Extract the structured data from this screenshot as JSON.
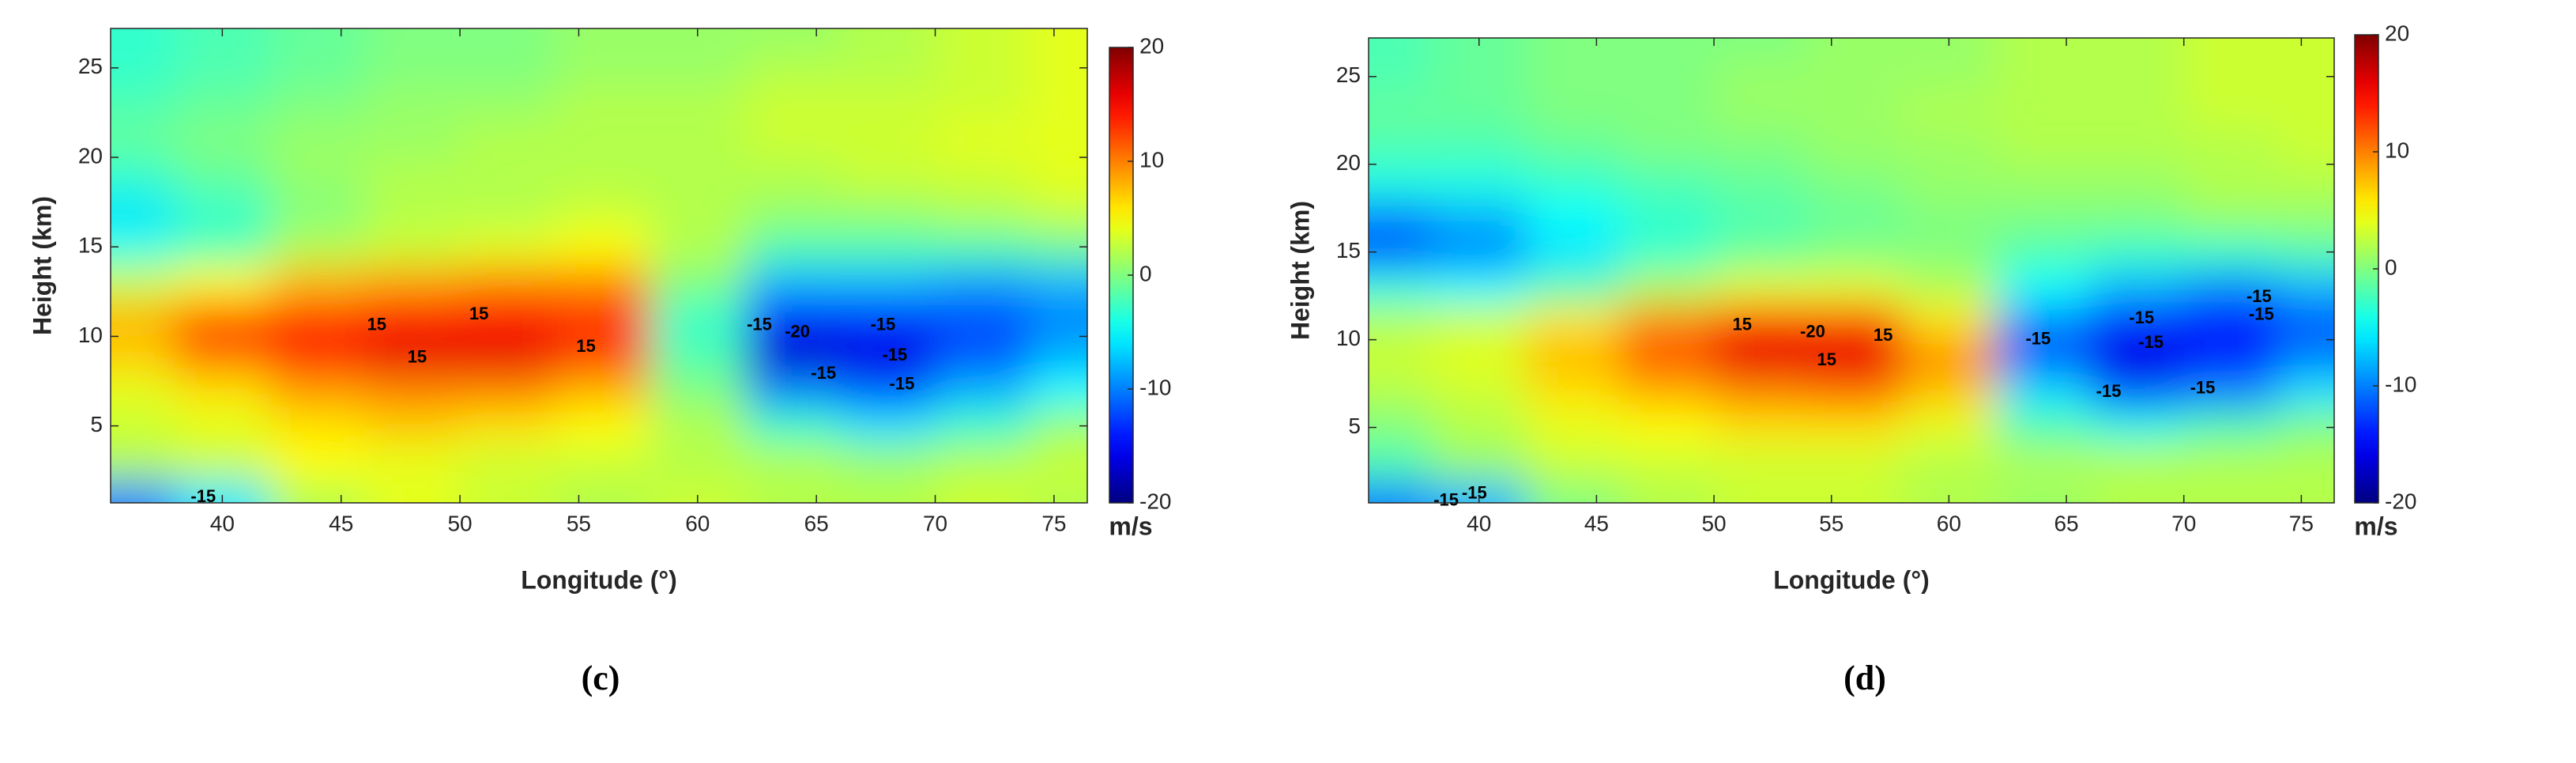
{
  "chart_data": [
    {
      "type": "heatmap",
      "panel_label": "(c)",
      "xlabel": "Longitude (°)",
      "ylabel": "Height (km)",
      "colormap": "jet",
      "x": [
        36,
        40,
        44,
        48,
        52,
        56,
        60,
        64,
        68,
        72,
        76
      ],
      "y": [
        1,
        3,
        5,
        7,
        9,
        11,
        13,
        15,
        17,
        19,
        21,
        23,
        25,
        27
      ],
      "z": [
        [
          -10,
          -6,
          2,
          4,
          3,
          2,
          3,
          2,
          2,
          3,
          2
        ],
        [
          2,
          3,
          5,
          4,
          3,
          3,
          2,
          2,
          1,
          2,
          3
        ],
        [
          3,
          4,
          6,
          7,
          6,
          5,
          2,
          -3,
          -6,
          -3,
          1
        ],
        [
          4,
          6,
          9,
          10,
          10,
          8,
          0,
          -10,
          -12,
          -8,
          -5
        ],
        [
          7,
          11,
          14,
          16,
          16,
          13,
          -2,
          -17,
          -16,
          -12,
          -8
        ],
        [
          8,
          12,
          13,
          15,
          15,
          13,
          -3,
          -15,
          -14,
          -12,
          -10
        ],
        [
          3,
          5,
          8,
          9,
          10,
          10,
          0,
          -8,
          -8,
          -9,
          -8
        ],
        [
          -4,
          -2,
          2,
          3,
          4,
          5,
          2,
          -2,
          -2,
          -2,
          -1
        ],
        [
          -6,
          -3,
          0,
          2,
          2,
          3,
          2,
          1,
          1,
          2,
          3
        ],
        [
          -3,
          -1,
          1,
          2,
          2,
          2,
          2,
          2,
          3,
          3,
          4
        ],
        [
          -1,
          0,
          1,
          1,
          2,
          2,
          2,
          3,
          3,
          4,
          4
        ],
        [
          -2,
          -1,
          0,
          1,
          1,
          2,
          2,
          3,
          3,
          3,
          4
        ],
        [
          -3,
          -2,
          -1,
          0,
          0,
          1,
          1,
          2,
          2,
          3,
          4
        ],
        [
          -3,
          -2,
          -1,
          0,
          0,
          1,
          1,
          1,
          2,
          3,
          4
        ]
      ],
      "xlim": [
        35.3,
        76.4
      ],
      "ylim": [
        0.7,
        27.2
      ],
      "xticks": [
        40,
        45,
        50,
        55,
        60,
        65,
        70,
        75
      ],
      "yticks": [
        5,
        10,
        15,
        20,
        25
      ],
      "colorbar": {
        "label": "m/s",
        "lim": [
          -20,
          20
        ],
        "ticks": [
          -20,
          -10,
          0,
          10,
          20
        ]
      },
      "annotations": [
        {
          "text": "15",
          "x": 46.5,
          "y": 10.6
        },
        {
          "text": "15",
          "x": 50.8,
          "y": 11.2
        },
        {
          "text": "15",
          "x": 48.2,
          "y": 8.8
        },
        {
          "text": "15",
          "x": 55.3,
          "y": 9.4
        },
        {
          "text": "-15",
          "x": 62.6,
          "y": 10.6
        },
        {
          "text": "-20",
          "x": 64.2,
          "y": 10.2
        },
        {
          "text": "-15",
          "x": 67.8,
          "y": 10.6
        },
        {
          "text": "-15",
          "x": 68.3,
          "y": 8.9
        },
        {
          "text": "-15",
          "x": 65.3,
          "y": 7.9
        },
        {
          "text": "-15",
          "x": 68.6,
          "y": 7.3
        },
        {
          "text": "-15",
          "x": 39.2,
          "y": 1.0
        }
      ]
    },
    {
      "type": "heatmap",
      "panel_label": "(d)",
      "xlabel": "Longitude (°)",
      "ylabel": "Height (km)",
      "colormap": "jet",
      "x": [
        36,
        40,
        44,
        48,
        52,
        56,
        60,
        64,
        68,
        72,
        76
      ],
      "y": [
        1,
        3,
        5,
        7,
        9,
        11,
        13,
        15,
        17,
        19,
        21,
        23,
        25,
        27
      ],
      "z": [
        [
          -10,
          -8,
          0,
          2,
          3,
          3,
          2,
          1,
          2,
          2,
          2
        ],
        [
          -2,
          1,
          3,
          3,
          3,
          3,
          2,
          2,
          2,
          2,
          2
        ],
        [
          0,
          2,
          4,
          5,
          6,
          6,
          4,
          -2,
          -4,
          -2,
          0
        ],
        [
          2,
          3,
          6,
          8,
          10,
          11,
          7,
          -6,
          -12,
          -10,
          -6
        ],
        [
          3,
          4,
          8,
          12,
          16,
          16,
          10,
          -12,
          -16,
          -14,
          -10
        ],
        [
          2,
          3,
          6,
          10,
          15,
          14,
          6,
          -10,
          -15,
          -15,
          -12
        ],
        [
          -4,
          -5,
          -2,
          2,
          4,
          4,
          2,
          -5,
          -8,
          -10,
          -8
        ],
        [
          -12,
          -10,
          -6,
          -3,
          -1,
          0,
          0,
          -2,
          -3,
          -3,
          -2
        ],
        [
          -10,
          -8,
          -5,
          -3,
          -2,
          -1,
          0,
          0,
          0,
          1,
          1
        ],
        [
          -4,
          -4,
          -3,
          -2,
          -1,
          0,
          1,
          1,
          1,
          2,
          2
        ],
        [
          -2,
          -2,
          -1,
          0,
          0,
          1,
          1,
          2,
          2,
          2,
          3
        ],
        [
          -1,
          -1,
          0,
          0,
          1,
          1,
          2,
          2,
          2,
          3,
          3
        ],
        [
          -2,
          -1,
          0,
          0,
          1,
          1,
          1,
          2,
          2,
          3,
          3
        ],
        [
          -2,
          -1,
          0,
          0,
          0,
          1,
          1,
          2,
          2,
          3,
          3
        ]
      ],
      "xlim": [
        35.3,
        76.4
      ],
      "ylim": [
        0.7,
        27.2
      ],
      "xticks": [
        40,
        45,
        50,
        55,
        60,
        65,
        70,
        75
      ],
      "yticks": [
        5,
        10,
        15,
        20,
        25
      ],
      "colorbar": {
        "label": "m/s",
        "lim": [
          -20,
          20
        ],
        "ticks": [
          -20,
          -10,
          0,
          10,
          20
        ]
      },
      "annotations": [
        {
          "text": "15",
          "x": 51.2,
          "y": 10.8
        },
        {
          "text": "-20",
          "x": 54.2,
          "y": 10.4
        },
        {
          "text": "15",
          "x": 57.2,
          "y": 10.2
        },
        {
          "text": "15",
          "x": 54.8,
          "y": 8.8
        },
        {
          "text": "-15",
          "x": 63.8,
          "y": 10.0
        },
        {
          "text": "-15",
          "x": 68.2,
          "y": 11.2
        },
        {
          "text": "-15",
          "x": 68.6,
          "y": 9.8
        },
        {
          "text": "-15",
          "x": 73.2,
          "y": 12.4
        },
        {
          "text": "-15",
          "x": 73.3,
          "y": 11.4
        },
        {
          "text": "-15",
          "x": 66.8,
          "y": 7.0
        },
        {
          "text": "-15",
          "x": 70.8,
          "y": 7.2
        },
        {
          "text": "-15",
          "x": 39.8,
          "y": 1.2
        },
        {
          "text": "-15",
          "x": 38.6,
          "y": 0.8
        }
      ]
    }
  ]
}
